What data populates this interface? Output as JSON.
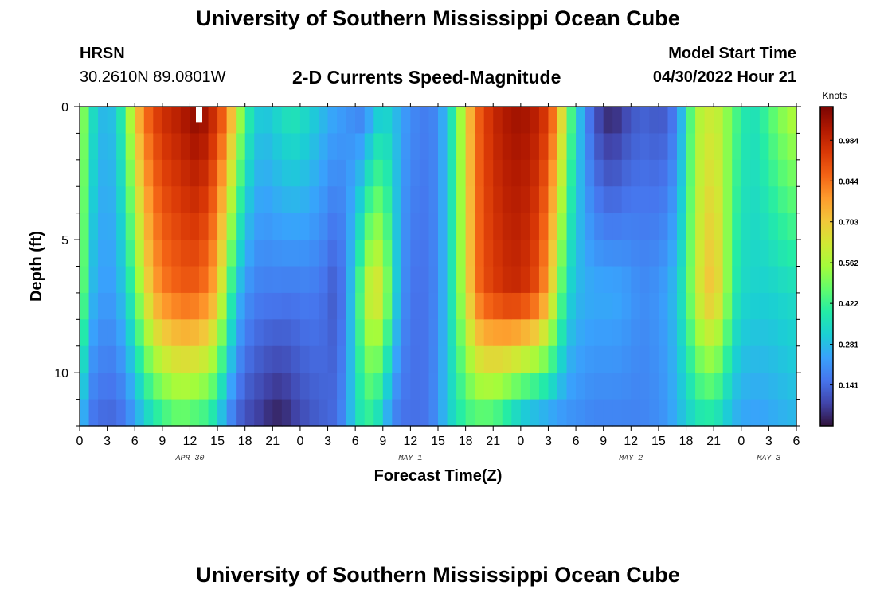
{
  "header": {
    "title": "University of Southern Mississippi Ocean Cube",
    "station": "HRSN",
    "coordinates": "30.2610N  89.0801W",
    "subtitle": "2-D Currents Speed-Magnitude",
    "model_start_label": "Model Start Time",
    "model_start_value": "04/30/2022 Hour 21"
  },
  "footer": {
    "title": "University of Southern Mississippi Ocean Cube"
  },
  "chart_data": {
    "type": "heatmap",
    "title": "2-D Currents Speed-Magnitude",
    "xlabel": "Forecast Time(Z)",
    "ylabel": "Depth (ft)",
    "colorbar_label": "Knots",
    "xlim": [
      0,
      78
    ],
    "ylim": [
      0,
      12
    ],
    "y_inverted": true,
    "x_tick_values": [
      0,
      3,
      6,
      9,
      12,
      15,
      18,
      21,
      24,
      27,
      30,
      33,
      36,
      39,
      42,
      45,
      48,
      51,
      54,
      57,
      60,
      63,
      66,
      69,
      72,
      75,
      78
    ],
    "x_tick_labels": [
      "0",
      "3",
      "6",
      "9",
      "12",
      "15",
      "18",
      "21",
      "0",
      "3",
      "6",
      "9",
      "12",
      "15",
      "18",
      "21",
      "0",
      "3",
      "6",
      "9",
      "12",
      "15",
      "18",
      "21",
      "0",
      "3",
      "6"
    ],
    "date_labels": [
      {
        "text": "APR 30",
        "x": 12
      },
      {
        "text": "MAY 1",
        "x": 36
      },
      {
        "text": "MAY 2",
        "x": 60
      },
      {
        "text": "MAY 3",
        "x": 75
      }
    ],
    "y_tick_values": [
      0,
      5,
      10
    ],
    "y_tick_labels": [
      "0",
      "5",
      "10"
    ],
    "colorbar_ticks": [
      "0.984",
      "0.844",
      "0.703",
      "0.562",
      "0.422",
      "0.281",
      "0.141"
    ],
    "colorbar_tick_values": [
      0.984,
      0.844,
      0.703,
      0.562,
      0.422,
      0.281,
      0.141
    ],
    "zlim": [
      0,
      1.1
    ],
    "colormap": [
      "#30123b",
      "#4145ab",
      "#4675ed",
      "#39a2fc",
      "#1bcfd4",
      "#24eca6",
      "#61fc6c",
      "#a4fc3b",
      "#d1e834",
      "#f3c63a",
      "#fe9b2d",
      "#f36315",
      "#d93806",
      "#b11901",
      "#7a0402"
    ],
    "depth_levels_ft": [
      0,
      1,
      2,
      3,
      4,
      5,
      6,
      7,
      8,
      9,
      10,
      11,
      12
    ],
    "time_hours": [
      0,
      1,
      2,
      3,
      4,
      5,
      6,
      7,
      8,
      9,
      10,
      11,
      12,
      13,
      14,
      15,
      16,
      17,
      18,
      19,
      20,
      21,
      22,
      23,
      24,
      25,
      26,
      27,
      28,
      29,
      30,
      31,
      32,
      33,
      34,
      35,
      36,
      37,
      38,
      39,
      40,
      41,
      42,
      43,
      44,
      45,
      46,
      47,
      48,
      49,
      50,
      51,
      52,
      53,
      54,
      55,
      56,
      57,
      58,
      59,
      60,
      61,
      62,
      63,
      64,
      65,
      66,
      67,
      68,
      69,
      70,
      71,
      72,
      73,
      74,
      75,
      76,
      77,
      78
    ],
    "speed_profile_surface_knots": [
      0.6,
      0.4,
      0.3,
      0.26,
      0.32,
      0.45,
      0.7,
      0.84,
      0.92,
      0.97,
      1.0,
      1.02,
      1.06,
      1.08,
      1.03,
      0.95,
      0.85,
      0.65,
      0.45,
      0.33,
      0.3,
      0.32,
      0.36,
      0.38,
      0.37,
      0.33,
      0.3,
      0.26,
      0.24,
      0.22,
      0.18,
      0.17,
      0.26,
      0.32,
      0.3,
      0.24,
      0.2,
      0.18,
      0.17,
      0.2,
      0.3,
      0.45,
      0.65,
      0.84,
      0.92,
      0.98,
      1.02,
      1.04,
      1.05,
      1.03,
      1.0,
      0.93,
      0.8,
      0.55,
      0.34,
      0.2,
      0.1,
      0.04,
      0.02,
      0.06,
      0.1,
      0.12,
      0.12,
      0.1,
      0.12,
      0.18,
      0.35,
      0.55,
      0.6,
      0.62,
      0.56,
      0.48,
      0.4,
      0.36,
      0.38,
      0.45,
      0.5,
      0.56,
      0.58
    ],
    "speed_profile_depth7_knots": [
      0.6,
      0.3,
      0.24,
      0.22,
      0.24,
      0.32,
      0.45,
      0.62,
      0.75,
      0.82,
      0.85,
      0.87,
      0.88,
      0.86,
      0.82,
      0.72,
      0.5,
      0.3,
      0.22,
      0.18,
      0.17,
      0.17,
      0.17,
      0.16,
      0.17,
      0.17,
      0.16,
      0.14,
      0.1,
      0.2,
      0.35,
      0.55,
      0.68,
      0.62,
      0.4,
      0.22,
      0.16,
      0.15,
      0.16,
      0.2,
      0.3,
      0.45,
      0.62,
      0.82,
      0.9,
      0.93,
      0.96,
      0.98,
      0.97,
      0.94,
      0.88,
      0.75,
      0.55,
      0.35,
      0.28,
      0.26,
      0.25,
      0.25,
      0.25,
      0.24,
      0.22,
      0.2,
      0.2,
      0.22,
      0.24,
      0.3,
      0.42,
      0.58,
      0.7,
      0.72,
      0.62,
      0.42,
      0.34,
      0.33,
      0.32,
      0.32,
      0.33,
      0.34,
      0.35
    ],
    "speed_profile_bottom_knots": [
      0.3,
      0.16,
      0.14,
      0.13,
      0.13,
      0.16,
      0.22,
      0.28,
      0.34,
      0.38,
      0.42,
      0.44,
      0.42,
      0.4,
      0.38,
      0.3,
      0.2,
      0.13,
      0.09,
      0.07,
      0.05,
      0.02,
      0.02,
      0.05,
      0.08,
      0.1,
      0.12,
      0.13,
      0.15,
      0.22,
      0.33,
      0.4,
      0.38,
      0.28,
      0.18,
      0.15,
      0.15,
      0.15,
      0.16,
      0.22,
      0.3,
      0.36,
      0.4,
      0.42,
      0.42,
      0.4,
      0.36,
      0.3,
      0.25,
      0.22,
      0.21,
      0.2,
      0.2,
      0.2,
      0.2,
      0.19,
      0.18,
      0.18,
      0.18,
      0.18,
      0.18,
      0.18,
      0.19,
      0.2,
      0.22,
      0.26,
      0.3,
      0.34,
      0.36,
      0.35,
      0.31,
      0.26,
      0.24,
      0.23,
      0.23,
      0.24,
      0.25,
      0.26,
      0.27
    ],
    "missing_cell": {
      "time_hours": 13,
      "depth_ft": 0.2
    }
  }
}
